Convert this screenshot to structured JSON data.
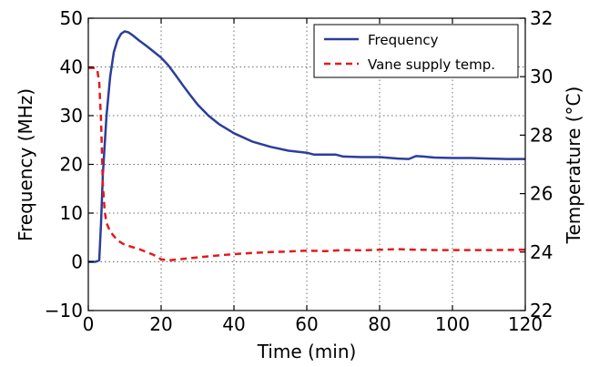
{
  "chart_data": {
    "type": "line",
    "xlabel": "Time (min)",
    "ylabel": "Frequency (MHz)",
    "ylabel_right": "Temperature (°C)",
    "xlim": [
      0,
      120
    ],
    "ylim": [
      -10,
      50
    ],
    "ylim_right": [
      22,
      32
    ],
    "x_ticks": [
      "0",
      "20",
      "40",
      "60",
      "80",
      "100",
      "120"
    ],
    "y_ticks": [
      "−10",
      "0",
      "10",
      "20",
      "30",
      "40",
      "50"
    ],
    "y_right_ticks": [
      "22",
      "24",
      "26",
      "28",
      "30",
      "32"
    ],
    "grid": true,
    "legend_position": "top-right",
    "series": [
      {
        "name": "Frequency",
        "axis": "left",
        "color": "#2b3e9a",
        "style": "solid",
        "x": [
          0,
          1,
          2,
          3,
          3.5,
          4,
          5,
          6,
          7,
          8,
          9,
          10,
          11,
          12,
          13,
          14,
          16,
          18,
          20,
          22,
          24,
          26,
          28,
          30,
          33,
          36,
          40,
          45,
          50,
          55,
          60,
          62,
          65,
          68,
          70,
          75,
          80,
          85,
          88,
          90,
          92,
          95,
          100,
          105,
          110,
          115,
          120
        ],
        "values": [
          0,
          0,
          0,
          0.3,
          8,
          18,
          30,
          38,
          43,
          45.5,
          46.8,
          47.3,
          47.1,
          46.6,
          46,
          45.4,
          44.3,
          43.1,
          41.9,
          40.3,
          38.3,
          36.2,
          34.2,
          32.3,
          30,
          28.2,
          26.4,
          24.7,
          23.6,
          22.8,
          22.4,
          22,
          22,
          22,
          21.6,
          21.5,
          21.5,
          21.2,
          21.1,
          21.7,
          21.6,
          21.4,
          21.3,
          21.3,
          21.2,
          21.1,
          21.1
        ]
      },
      {
        "name": "Vane supply temp.",
        "axis": "right",
        "color": "#e31a1c",
        "style": "dashed",
        "x": [
          0,
          1,
          2,
          2.5,
          3,
          3.5,
          4,
          4.5,
          5,
          6,
          8,
          10,
          14,
          18,
          20,
          22,
          25,
          30,
          35,
          40,
          45,
          50,
          55,
          60,
          65,
          70,
          75,
          80,
          85,
          90,
          95,
          100,
          110,
          120
        ],
        "values": [
          30.3,
          30.3,
          30.3,
          30.2,
          29.8,
          28.5,
          26.3,
          25.4,
          25.0,
          24.7,
          24.4,
          24.25,
          24.1,
          23.9,
          23.75,
          23.72,
          23.75,
          23.82,
          23.88,
          23.93,
          23.97,
          24.0,
          24.02,
          24.05,
          24.03,
          24.07,
          24.06,
          24.08,
          24.1,
          24.08,
          24.07,
          24.07,
          24.07,
          24.08
        ]
      }
    ]
  }
}
